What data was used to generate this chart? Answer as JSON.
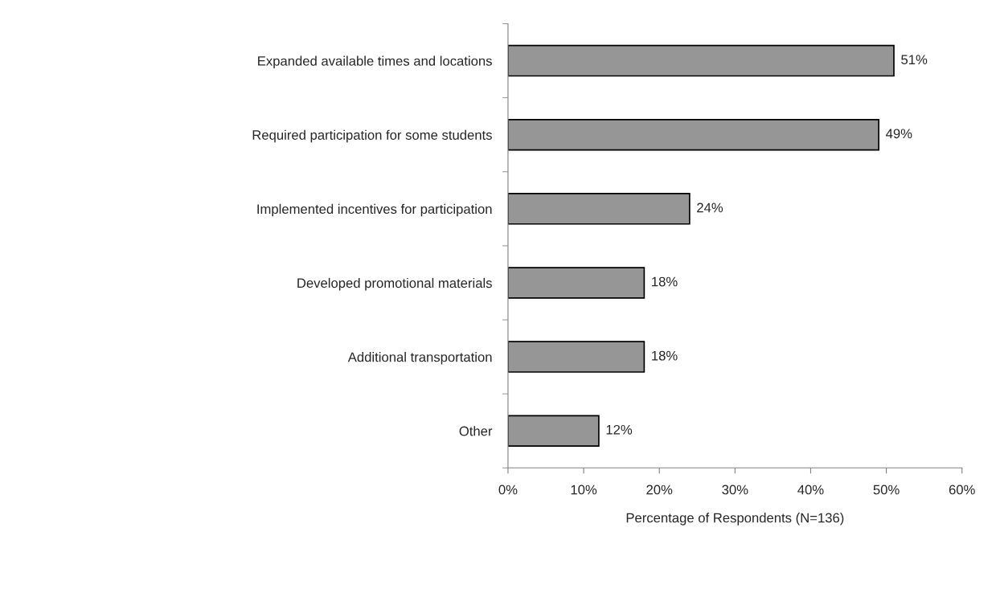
{
  "chart_data": {
    "type": "bar",
    "orientation": "horizontal",
    "xlabel": "Percentage of Respondents (N=136)",
    "categories": [
      "Expanded available times and locations",
      "Required participation for some students",
      "Implemented incentives for participation",
      "Developed promotional materials",
      "Additional transportation",
      "Other"
    ],
    "values": [
      51,
      49,
      24,
      18,
      18,
      12
    ],
    "value_labels": [
      "51%",
      "49%",
      "24%",
      "18%",
      "18%",
      "12%"
    ],
    "color": "#969696",
    "xlim": [
      0,
      60
    ],
    "xticks": [
      {
        "value": 0,
        "label": "0%"
      },
      {
        "value": 10,
        "label": "10%"
      },
      {
        "value": 20,
        "label": "20%"
      },
      {
        "value": 30,
        "label": "30%"
      },
      {
        "value": 40,
        "label": "40%"
      },
      {
        "value": 50,
        "label": "50%"
      },
      {
        "value": 60,
        "label": "60%"
      }
    ],
    "grid": false,
    "legend": false
  }
}
